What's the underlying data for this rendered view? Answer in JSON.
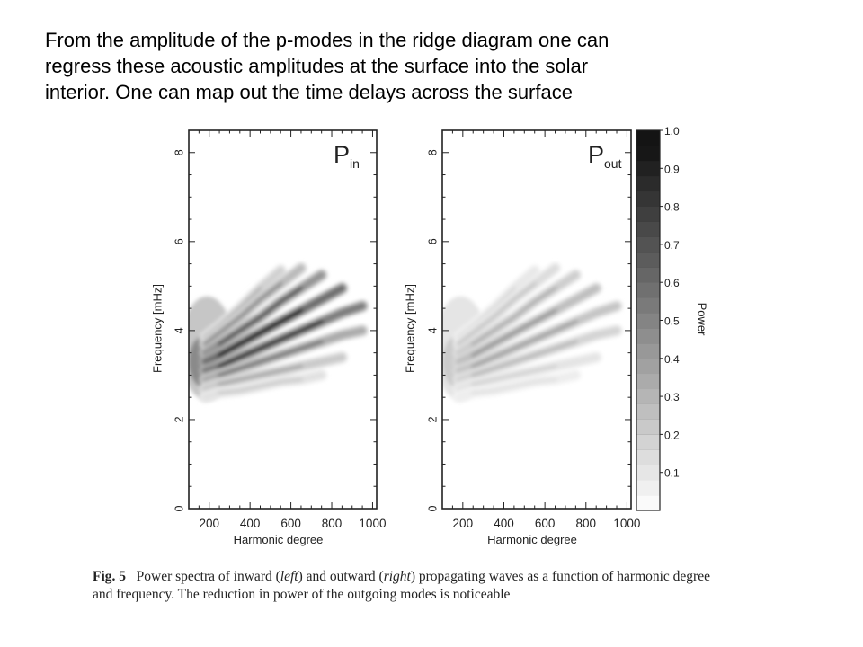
{
  "slide_text": {
    "lines": [
      "From the amplitude of the p-modes in the ridge diagram one can",
      "regress these acoustic amplitudes at the surface into the solar",
      "interior. One can map out the time delays across the surface"
    ]
  },
  "figure": {
    "caption": {
      "label": "Fig. 5",
      "line1_a": "Power spectra of inward (",
      "line1_left": "left",
      "line1_b": ") and outward (",
      "line1_right": "right",
      "line1_c": ") propagating waves as a function of harmonic degree",
      "line2": "and frequency. The reduction in power of the outgoing modes is noticeable"
    }
  },
  "chart_data": [
    {
      "type": "heatmap",
      "panel_label": "P",
      "panel_subscript": "in",
      "xlabel": "Harmonic degree",
      "ylabel": "Frequency [mHz]",
      "xlim": [
        100,
        1020
      ],
      "ylim": [
        0,
        8.5
      ],
      "x_ticks": [
        200,
        400,
        600,
        800,
        1000
      ],
      "y_ticks": [
        0,
        2,
        4,
        6,
        8
      ],
      "ridges": [
        {
          "x": [
            180,
            250,
            350,
            450,
            550
          ],
          "y": [
            3.85,
            4.1,
            4.5,
            4.95,
            5.35
          ],
          "peak": 0.3
        },
        {
          "x": [
            180,
            250,
            350,
            450,
            550,
            650
          ],
          "y": [
            3.7,
            3.95,
            4.3,
            4.7,
            5.05,
            5.4
          ],
          "peak": 0.45
        },
        {
          "x": [
            180,
            250,
            350,
            450,
            550,
            650,
            750
          ],
          "y": [
            3.5,
            3.7,
            4.0,
            4.3,
            4.65,
            4.95,
            5.25
          ],
          "peak": 0.7
        },
        {
          "x": [
            180,
            250,
            350,
            450,
            550,
            650,
            750,
            850
          ],
          "y": [
            3.3,
            3.45,
            3.7,
            3.95,
            4.2,
            4.45,
            4.7,
            4.95
          ],
          "peak": 0.95
        },
        {
          "x": [
            180,
            250,
            350,
            450,
            550,
            650,
            750,
            850,
            950
          ],
          "y": [
            3.1,
            3.2,
            3.4,
            3.6,
            3.8,
            4.0,
            4.2,
            4.4,
            4.55
          ],
          "peak": 0.85
        },
        {
          "x": [
            180,
            250,
            350,
            450,
            550,
            650,
            750,
            850,
            950
          ],
          "y": [
            2.9,
            3.0,
            3.15,
            3.3,
            3.45,
            3.6,
            3.75,
            3.9,
            4.0
          ],
          "peak": 0.55
        },
        {
          "x": [
            180,
            250,
            350,
            450,
            550,
            650,
            750,
            850
          ],
          "y": [
            2.7,
            2.8,
            2.9,
            3.0,
            3.1,
            3.2,
            3.3,
            3.4
          ],
          "peak": 0.35
        },
        {
          "x": [
            180,
            250,
            350,
            450,
            550,
            650,
            750
          ],
          "y": [
            2.5,
            2.6,
            2.65,
            2.75,
            2.85,
            2.9,
            3.0
          ],
          "peak": 0.2
        }
      ]
    },
    {
      "type": "heatmap",
      "panel_label": "P",
      "panel_subscript": "out",
      "xlabel": "Harmonic degree",
      "ylabel": "Frequency [mHz]",
      "xlim": [
        100,
        1020
      ],
      "ylim": [
        0,
        8.5
      ],
      "x_ticks": [
        200,
        400,
        600,
        800,
        1000
      ],
      "y_ticks": [
        0,
        2,
        4,
        6,
        8
      ],
      "ridges": [
        {
          "x": [
            180,
            250,
            350,
            450,
            550
          ],
          "y": [
            3.85,
            4.1,
            4.5,
            4.95,
            5.35
          ],
          "peak": 0.15
        },
        {
          "x": [
            180,
            250,
            350,
            450,
            550,
            650
          ],
          "y": [
            3.7,
            3.95,
            4.3,
            4.7,
            5.05,
            5.4
          ],
          "peak": 0.22
        },
        {
          "x": [
            180,
            250,
            350,
            450,
            550,
            650,
            750
          ],
          "y": [
            3.5,
            3.7,
            4.0,
            4.3,
            4.65,
            4.95,
            5.25
          ],
          "peak": 0.32
        },
        {
          "x": [
            180,
            250,
            350,
            450,
            550,
            650,
            750,
            850
          ],
          "y": [
            3.3,
            3.45,
            3.7,
            3.95,
            4.2,
            4.45,
            4.7,
            4.95
          ],
          "peak": 0.42
        },
        {
          "x": [
            180,
            250,
            350,
            450,
            550,
            650,
            750,
            850,
            950
          ],
          "y": [
            3.1,
            3.2,
            3.4,
            3.6,
            3.8,
            4.0,
            4.2,
            4.4,
            4.55
          ],
          "peak": 0.38
        },
        {
          "x": [
            180,
            250,
            350,
            450,
            550,
            650,
            750,
            850,
            950
          ],
          "y": [
            2.9,
            3.0,
            3.15,
            3.3,
            3.45,
            3.6,
            3.75,
            3.9,
            4.0
          ],
          "peak": 0.28
        },
        {
          "x": [
            180,
            250,
            350,
            450,
            550,
            650,
            750,
            850
          ],
          "y": [
            2.7,
            2.8,
            2.9,
            3.0,
            3.1,
            3.2,
            3.3,
            3.4
          ],
          "peak": 0.18
        },
        {
          "x": [
            180,
            250,
            350,
            450,
            550,
            650,
            750
          ],
          "y": [
            2.5,
            2.6,
            2.65,
            2.75,
            2.85,
            2.9,
            3.0
          ],
          "peak": 0.12
        }
      ]
    }
  ],
  "colorbar": {
    "label": "Power",
    "range": [
      0.0,
      1.0
    ],
    "levels": 25,
    "tick_values": [
      0.1,
      0.2,
      0.3,
      0.4,
      0.5,
      0.6,
      0.7,
      0.8,
      0.9,
      1.0
    ],
    "tick_labels": [
      "0.1",
      "0.2",
      "0.3",
      "0.4",
      "0.5",
      "0.6",
      "0.7",
      "0.8",
      "0.9",
      "1.0"
    ]
  }
}
